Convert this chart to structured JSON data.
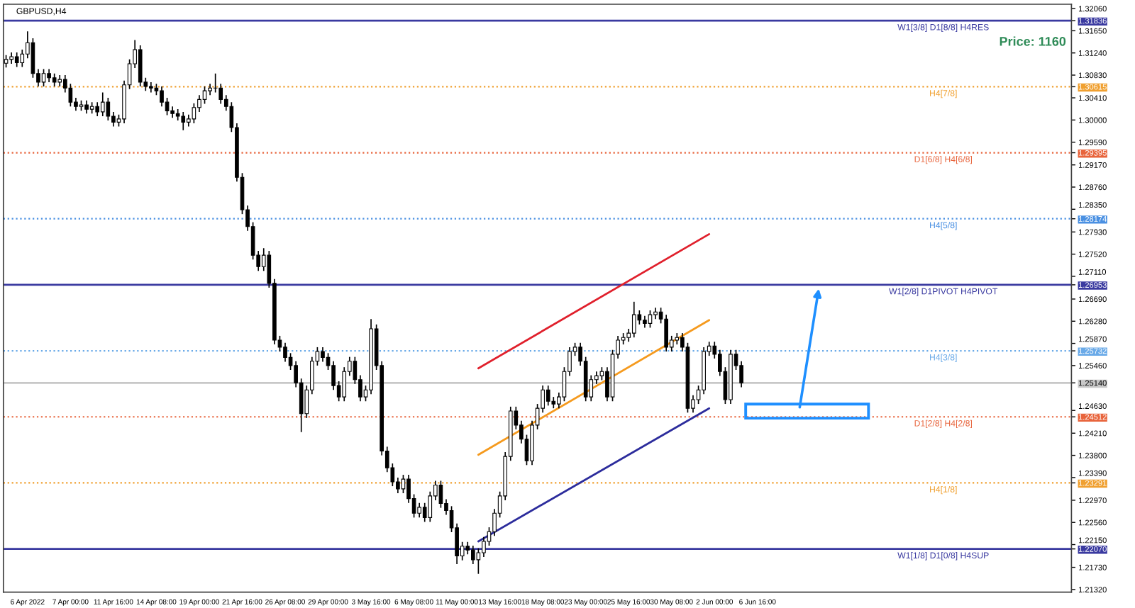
{
  "chart_data": {
    "type": "candlestick",
    "title": "GBPUSD,H4",
    "annotations": [
      "Price: 1160"
    ],
    "categories": [
      null,
      null,
      null,
      null,
      "6 Apr 2022",
      null,
      null,
      null,
      null,
      null,
      null,
      null,
      "7 Apr 00:00",
      null,
      null,
      null,
      null,
      null,
      null,
      null,
      "11 Apr 16:00",
      null,
      null,
      null,
      null,
      null,
      null,
      null,
      "14 Apr 08:00",
      null,
      null,
      null,
      null,
      null,
      null,
      null,
      "19 Apr 00:00",
      null,
      null,
      null,
      null,
      null,
      null,
      null,
      "21 Apr 16:00",
      null,
      null,
      null,
      null,
      null,
      null,
      null,
      "26 Apr 08:00",
      null,
      null,
      null,
      null,
      null,
      null,
      null,
      "29 Apr 00:00",
      null,
      null,
      null,
      null,
      null,
      null,
      null,
      "3 May 16:00",
      null,
      null,
      null,
      null,
      null,
      null,
      null,
      "6 May 08:00",
      null,
      null,
      null,
      null,
      null,
      null,
      null,
      "11 May 00:00",
      null,
      null,
      null,
      null,
      null,
      null,
      null,
      "13 May 16:00",
      null,
      null,
      null,
      null,
      null,
      null,
      null,
      "18 May 08:00",
      null,
      null,
      null,
      null,
      null,
      null,
      null,
      "23 May 00:00",
      null,
      null,
      null,
      null,
      null,
      null,
      null,
      "25 May 16:00",
      null,
      null,
      null,
      null,
      null,
      null,
      null,
      "30 May 08:00",
      null,
      null,
      null,
      null,
      null,
      null,
      null,
      "2 Jun 00:00",
      null,
      null,
      null,
      null,
      null,
      null,
      null,
      "6 Jun 16:00",
      null,
      null,
      null,
      null,
      null,
      null,
      null,
      null,
      null,
      null,
      null,
      null,
      null,
      null,
      null,
      null,
      null,
      null,
      null,
      null,
      null,
      null,
      null,
      null,
      null,
      null,
      null,
      null,
      null,
      null,
      null,
      null,
      null,
      null,
      null,
      null,
      null,
      null,
      null,
      null,
      null,
      null,
      null,
      null,
      null,
      null,
      null,
      null,
      null,
      null,
      null,
      null,
      null,
      null,
      null,
      null,
      null,
      null
    ],
    "ohlc": [
      [
        1.3105,
        1.312,
        1.3097,
        1.3112
      ],
      [
        1.3112,
        1.3125,
        1.3104,
        1.3117
      ],
      [
        1.3117,
        1.3125,
        1.3098,
        1.3106
      ],
      [
        1.3106,
        1.313,
        1.3098,
        1.3122
      ],
      [
        1.3122,
        1.3164,
        1.3114,
        1.3143
      ],
      [
        1.3143,
        1.3151,
        1.3078,
        1.3086
      ],
      [
        1.3086,
        1.3094,
        1.3062,
        1.307
      ],
      [
        1.307,
        1.3094,
        1.3062,
        1.3086
      ],
      [
        1.3086,
        1.3094,
        1.307,
        1.3078
      ],
      [
        1.3078,
        1.3086,
        1.3062,
        1.307
      ],
      [
        1.307,
        1.3083,
        1.3062,
        1.3075
      ],
      [
        1.3075,
        1.3083,
        1.3051,
        1.3059
      ],
      [
        1.3059,
        1.3067,
        1.3025,
        1.3033
      ],
      [
        1.3033,
        1.3041,
        1.3017,
        1.3025
      ],
      [
        1.3025,
        1.3036,
        1.3017,
        1.3028
      ],
      [
        1.3028,
        1.3036,
        1.3012,
        1.302
      ],
      [
        1.302,
        1.3033,
        1.3012,
        1.3025
      ],
      [
        1.3025,
        1.3033,
        1.3007,
        1.3015
      ],
      [
        1.3015,
        1.3051,
        1.3007,
        1.3033
      ],
      [
        1.3033,
        1.3041,
        1.2999,
        1.3007
      ],
      [
        1.3007,
        1.3015,
        1.2988,
        1.2996
      ],
      [
        1.2996,
        1.301,
        1.2988,
        1.3002
      ],
      [
        1.3002,
        1.3073,
        1.2994,
        1.3065
      ],
      [
        1.3065,
        1.3112,
        1.3057,
        1.3104
      ],
      [
        1.3104,
        1.3148,
        1.3096,
        1.313
      ],
      [
        1.313,
        1.3138,
        1.3062,
        1.307
      ],
      [
        1.307,
        1.3078,
        1.3054,
        1.3062
      ],
      [
        1.3062,
        1.307,
        1.3051,
        1.3059
      ],
      [
        1.3059,
        1.3067,
        1.3046,
        1.3054
      ],
      [
        1.3054,
        1.3062,
        1.3025,
        1.3033
      ],
      [
        1.3033,
        1.3041,
        1.3009,
        1.3017
      ],
      [
        1.3017,
        1.3025,
        1.3004,
        1.3012
      ],
      [
        1.3012,
        1.302,
        1.2999,
        1.3007
      ],
      [
        1.3007,
        1.3015,
        1.2981,
        1.2996
      ],
      [
        1.2996,
        1.301,
        1.2988,
        1.3002
      ],
      [
        1.3002,
        1.3031,
        1.2994,
        1.3023
      ],
      [
        1.3023,
        1.3046,
        1.3015,
        1.3038
      ],
      [
        1.3038,
        1.3062,
        1.303,
        1.3054
      ],
      [
        1.3054,
        1.3067,
        1.3046,
        1.3059
      ],
      [
        1.3059,
        1.3086,
        1.3051,
        1.3059
      ],
      [
        1.3059,
        1.3067,
        1.303,
        1.3038
      ],
      [
        1.3038,
        1.3046,
        1.3017,
        1.3025
      ],
      [
        1.3025,
        1.3033,
        1.2978,
        1.2986
      ],
      [
        1.2986,
        1.2994,
        1.2886,
        1.2894
      ],
      [
        1.2894,
        1.2902,
        1.2826,
        1.2834
      ],
      [
        1.2834,
        1.2842,
        1.2795,
        1.2803
      ],
      [
        1.2803,
        1.2811,
        1.2742,
        1.275
      ],
      [
        1.275,
        1.2758,
        1.2721,
        1.2729
      ],
      [
        1.2729,
        1.2763,
        1.2721,
        1.275
      ],
      [
        1.275,
        1.2758,
        1.269,
        1.2698
      ],
      [
        1.2698,
        1.2706,
        1.2585,
        1.2593
      ],
      [
        1.2593,
        1.2601,
        1.2572,
        1.258
      ],
      [
        1.258,
        1.2588,
        1.2553,
        1.2561
      ],
      [
        1.2561,
        1.2569,
        1.2538,
        1.2546
      ],
      [
        1.2546,
        1.2554,
        1.2506,
        1.2514
      ],
      [
        1.2514,
        1.2522,
        1.2423,
        1.2457
      ],
      [
        1.2457,
        1.2509,
        1.2449,
        1.2501
      ],
      [
        1.2501,
        1.2562,
        1.2493,
        1.2554
      ],
      [
        1.2554,
        1.258,
        1.2546,
        1.2572
      ],
      [
        1.2572,
        1.258,
        1.2553,
        1.2561
      ],
      [
        1.2561,
        1.2569,
        1.2538,
        1.2546
      ],
      [
        1.2546,
        1.2554,
        1.2501,
        1.2509
      ],
      [
        1.2509,
        1.2517,
        1.248,
        1.2488
      ],
      [
        1.2488,
        1.2543,
        1.248,
        1.2535
      ],
      [
        1.2535,
        1.2562,
        1.2527,
        1.2554
      ],
      [
        1.2554,
        1.2562,
        1.2512,
        1.252
      ],
      [
        1.252,
        1.2528,
        1.248,
        1.2488
      ],
      [
        1.2488,
        1.2509,
        1.248,
        1.2501
      ],
      [
        1.2501,
        1.2632,
        1.2493,
        1.2614
      ],
      [
        1.2614,
        1.2622,
        1.2538,
        1.2546
      ],
      [
        1.2546,
        1.2554,
        1.238,
        1.2388
      ],
      [
        1.2388,
        1.2396,
        1.2349,
        1.2357
      ],
      [
        1.2357,
        1.2365,
        1.2323,
        1.2331
      ],
      [
        1.2331,
        1.2339,
        1.231,
        1.2318
      ],
      [
        1.2318,
        1.2344,
        1.231,
        1.2336
      ],
      [
        1.2336,
        1.2344,
        1.2292,
        1.23
      ],
      [
        1.23,
        1.2308,
        1.2265,
        1.2273
      ],
      [
        1.2273,
        1.2292,
        1.2265,
        1.2284
      ],
      [
        1.2284,
        1.2292,
        1.2257,
        1.2265
      ],
      [
        1.2265,
        1.2313,
        1.2257,
        1.2305
      ],
      [
        1.2305,
        1.2333,
        1.2297,
        1.2325
      ],
      [
        1.2325,
        1.2333,
        1.2283,
        1.2291
      ],
      [
        1.2291,
        1.2299,
        1.227,
        1.2278
      ],
      [
        1.2278,
        1.2286,
        1.2238,
        1.2246
      ],
      [
        1.2246,
        1.2254,
        1.2179,
        1.2194
      ],
      [
        1.2194,
        1.222,
        1.2186,
        1.2212
      ],
      [
        1.2212,
        1.222,
        1.2197,
        1.2205
      ],
      [
        1.2205,
        1.2213,
        1.2179,
        1.2187
      ],
      [
        1.2187,
        1.2208,
        1.2161,
        1.22
      ],
      [
        1.22,
        1.2229,
        1.2192,
        1.2221
      ],
      [
        1.2221,
        1.2247,
        1.2213,
        1.2239
      ],
      [
        1.2239,
        1.2281,
        1.2231,
        1.2273
      ],
      [
        1.2273,
        1.2313,
        1.2265,
        1.2305
      ],
      [
        1.2305,
        1.2386,
        1.2297,
        1.2378
      ],
      [
        1.2378,
        1.247,
        1.237,
        1.2462
      ],
      [
        1.2462,
        1.247,
        1.2428,
        1.2436
      ],
      [
        1.2436,
        1.2444,
        1.2402,
        1.241
      ],
      [
        1.241,
        1.2418,
        1.2362,
        1.237
      ],
      [
        1.237,
        1.2444,
        1.2362,
        1.2436
      ],
      [
        1.2436,
        1.2475,
        1.2428,
        1.2467
      ],
      [
        1.2467,
        1.2509,
        1.2459,
        1.2501
      ],
      [
        1.2501,
        1.2509,
        1.2472,
        1.248
      ],
      [
        1.248,
        1.2488,
        1.2467,
        1.2475
      ],
      [
        1.2475,
        1.2496,
        1.2467,
        1.2488
      ],
      [
        1.2488,
        1.2543,
        1.248,
        1.2535
      ],
      [
        1.2535,
        1.258,
        1.2527,
        1.2572
      ],
      [
        1.2572,
        1.2588,
        1.2564,
        1.258
      ],
      [
        1.258,
        1.2588,
        1.2546,
        1.2554
      ],
      [
        1.2554,
        1.2562,
        1.248,
        1.2488
      ],
      [
        1.2488,
        1.2528,
        1.248,
        1.252
      ],
      [
        1.252,
        1.2535,
        1.2512,
        1.2527
      ],
      [
        1.2527,
        1.2543,
        1.2519,
        1.2535
      ],
      [
        1.2535,
        1.2543,
        1.248,
        1.2488
      ],
      [
        1.2488,
        1.2575,
        1.248,
        1.2567
      ],
      [
        1.2567,
        1.2601,
        1.2559,
        1.2593
      ],
      [
        1.2593,
        1.2606,
        1.2585,
        1.2598
      ],
      [
        1.2598,
        1.2614,
        1.259,
        1.2606
      ],
      [
        1.2606,
        1.2664,
        1.2598,
        1.264
      ],
      [
        1.264,
        1.2648,
        1.2622,
        1.263
      ],
      [
        1.263,
        1.2638,
        1.2616,
        1.2624
      ],
      [
        1.2624,
        1.2648,
        1.2616,
        1.264
      ],
      [
        1.264,
        1.2653,
        1.2632,
        1.2645
      ],
      [
        1.2645,
        1.2653,
        1.2624,
        1.2632
      ],
      [
        1.2632,
        1.264,
        1.2572,
        1.258
      ],
      [
        1.258,
        1.2601,
        1.2572,
        1.2593
      ],
      [
        1.2593,
        1.2606,
        1.2585,
        1.2598
      ],
      [
        1.2598,
        1.2606,
        1.2572,
        1.258
      ],
      [
        1.258,
        1.2588,
        1.2459,
        1.2467
      ],
      [
        1.2467,
        1.2491,
        1.2459,
        1.2483
      ],
      [
        1.2483,
        1.2509,
        1.2475,
        1.2501
      ],
      [
        1.2501,
        1.258,
        1.2493,
        1.2572
      ],
      [
        1.2572,
        1.259,
        1.2564,
        1.2582
      ],
      [
        1.2582,
        1.259,
        1.2559,
        1.2567
      ],
      [
        1.2567,
        1.2575,
        1.2527,
        1.2535
      ],
      [
        1.2535,
        1.2543,
        1.2475,
        1.2483
      ],
      [
        1.2483,
        1.2575,
        1.2475,
        1.2567
      ],
      [
        1.2567,
        1.2575,
        1.2538,
        1.2546
      ],
      [
        1.2546,
        1.2554,
        1.2506,
        1.2514
      ],
      null,
      null,
      null,
      null,
      null,
      null,
      null,
      null,
      null,
      null,
      null,
      null,
      null,
      null,
      null,
      null,
      null,
      null,
      null,
      null,
      null,
      null,
      null,
      null,
      null,
      null,
      null,
      null,
      null,
      null,
      null,
      null,
      null,
      null,
      null,
      null,
      null,
      null,
      null,
      null,
      null,
      null,
      null,
      null,
      null,
      null,
      null,
      null,
      null,
      null,
      null,
      null,
      null,
      null,
      null,
      null,
      null,
      null,
      null,
      null,
      null
    ],
    "series": [
      {
        "type": "line",
        "color": "#e0202c",
        "values": [
          null,
          null,
          null,
          null,
          null,
          null,
          null,
          null,
          null,
          null,
          null,
          null,
          null,
          null,
          null,
          null,
          null,
          null,
          null,
          null,
          null,
          null,
          null,
          null,
          null,
          null,
          null,
          null,
          null,
          null,
          null,
          null,
          null,
          null,
          null,
          null,
          null,
          null,
          null,
          null,
          null,
          null,
          null,
          null,
          null,
          null,
          null,
          null,
          null,
          null,
          null,
          null,
          null,
          null,
          null,
          null,
          null,
          null,
          null,
          null,
          null,
          null,
          null,
          null,
          null,
          null,
          null,
          null,
          null,
          null,
          null,
          null,
          null,
          null,
          null,
          null,
          null,
          null,
          null,
          null,
          null,
          null,
          null,
          null,
          null,
          null,
          null,
          null,
          1.2541,
          null,
          null,
          null,
          null,
          null,
          null,
          null,
          null,
          null,
          null,
          null,
          null,
          null,
          null,
          null,
          null,
          null,
          null,
          null,
          null,
          null,
          null,
          null,
          null,
          null,
          null,
          null,
          null,
          null,
          null,
          null,
          null,
          null,
          null,
          null,
          null,
          null,
          null,
          null,
          null,
          null,
          null,
          1.2789,
          null,
          null,
          null,
          null,
          null,
          null,
          null,
          null,
          null,
          null,
          null,
          null,
          null,
          null,
          null,
          null,
          null,
          null,
          null,
          null,
          null,
          null,
          null,
          null,
          null,
          null,
          null,
          null,
          null,
          null,
          null,
          null,
          null,
          null,
          null,
          null,
          null,
          null,
          null,
          null,
          null,
          null,
          null,
          null,
          null,
          null,
          null,
          null,
          null,
          null,
          null,
          null,
          null,
          null,
          null,
          null,
          null,
          null,
          null,
          null,
          null,
          null,
          null,
          null,
          null,
          null,
          null
        ]
      },
      {
        "type": "line",
        "color": "#f59a1e",
        "values": [
          null,
          null,
          null,
          null,
          null,
          null,
          null,
          null,
          null,
          null,
          null,
          null,
          null,
          null,
          null,
          null,
          null,
          null,
          null,
          null,
          null,
          null,
          null,
          null,
          null,
          null,
          null,
          null,
          null,
          null,
          null,
          null,
          null,
          null,
          null,
          null,
          null,
          null,
          null,
          null,
          null,
          null,
          null,
          null,
          null,
          null,
          null,
          null,
          null,
          null,
          null,
          null,
          null,
          null,
          null,
          null,
          null,
          null,
          null,
          null,
          null,
          null,
          null,
          null,
          null,
          null,
          null,
          null,
          null,
          null,
          null,
          null,
          null,
          null,
          null,
          null,
          null,
          null,
          null,
          null,
          null,
          null,
          null,
          null,
          null,
          null,
          null,
          null,
          1.2381,
          null,
          null,
          null,
          null,
          null,
          null,
          null,
          null,
          null,
          null,
          null,
          null,
          null,
          null,
          null,
          null,
          null,
          null,
          null,
          null,
          null,
          null,
          null,
          null,
          null,
          null,
          null,
          null,
          null,
          null,
          null,
          null,
          null,
          null,
          null,
          null,
          null,
          null,
          null,
          null,
          null,
          null,
          1.263,
          null,
          null,
          null,
          null,
          null,
          null,
          null,
          null,
          null,
          null,
          null,
          null,
          null,
          null,
          null,
          null,
          null,
          null,
          null,
          null,
          null,
          null,
          null,
          null,
          null,
          null,
          null,
          null,
          null,
          null,
          null,
          null,
          null,
          null,
          null,
          null,
          null,
          null,
          null,
          null,
          null,
          null,
          null,
          null,
          null,
          null,
          null,
          null,
          null,
          null,
          null,
          null,
          null,
          null,
          null,
          null,
          null,
          null,
          null,
          null,
          null,
          null,
          null,
          null,
          null,
          null,
          null
        ]
      },
      {
        "type": "line",
        "color": "#2c2c9c",
        "values": [
          null,
          null,
          null,
          null,
          null,
          null,
          null,
          null,
          null,
          null,
          null,
          null,
          null,
          null,
          null,
          null,
          null,
          null,
          null,
          null,
          null,
          null,
          null,
          null,
          null,
          null,
          null,
          null,
          null,
          null,
          null,
          null,
          null,
          null,
          null,
          null,
          null,
          null,
          null,
          null,
          null,
          null,
          null,
          null,
          null,
          null,
          null,
          null,
          null,
          null,
          null,
          null,
          null,
          null,
          null,
          null,
          null,
          null,
          null,
          null,
          null,
          null,
          null,
          null,
          null,
          null,
          null,
          null,
          null,
          null,
          null,
          null,
          null,
          null,
          null,
          null,
          null,
          null,
          null,
          null,
          null,
          null,
          null,
          null,
          null,
          null,
          null,
          null,
          1.2221,
          null,
          null,
          null,
          null,
          null,
          null,
          null,
          null,
          null,
          null,
          null,
          null,
          null,
          null,
          null,
          null,
          null,
          null,
          null,
          null,
          null,
          null,
          null,
          null,
          null,
          null,
          null,
          null,
          null,
          null,
          null,
          null,
          null,
          null,
          null,
          null,
          null,
          null,
          null,
          null,
          null,
          null,
          1.2467,
          null,
          null,
          null,
          null,
          null,
          null,
          null,
          null,
          null,
          null,
          null,
          null,
          null,
          null,
          null,
          null,
          null,
          null,
          null,
          null,
          null,
          null,
          null,
          null,
          null,
          null,
          null,
          null,
          null,
          null,
          null,
          null,
          null,
          null,
          null,
          null,
          null,
          null,
          null,
          null,
          null,
          null,
          null,
          null,
          null,
          null,
          null,
          null,
          null,
          null,
          null,
          null,
          null,
          null,
          null,
          null,
          null,
          null,
          null,
          null,
          null,
          null,
          null,
          null,
          null,
          null,
          null
        ]
      }
    ],
    "ref_lines": [
      {
        "axis": "y",
        "value": 1.31836,
        "label": "W1[3/8] D1[8/8] H4RES",
        "color": "#3a3aa0",
        "line_style": "solid"
      },
      {
        "axis": "y",
        "value": 1.30615,
        "label": "H4[7/8]",
        "color": "#f0a030",
        "line_style": "dotted"
      },
      {
        "axis": "y",
        "value": 1.29395,
        "label": "D1[6/8] H4[6/8]",
        "color": "#e8643c",
        "line_style": "dotted"
      },
      {
        "axis": "y",
        "value": 1.28174,
        "label": "H4[5/8]",
        "color": "#4a90e2",
        "line_style": "dotted"
      },
      {
        "axis": "y",
        "value": 1.26953,
        "label": "W1[2/8] D1PIVOT H4PIVOT",
        "color": "#3a3aa0",
        "line_style": "solid"
      },
      {
        "axis": "y",
        "value": 1.25732,
        "label": "H4[3/8]",
        "color": "#6aaae8",
        "line_style": "dotted"
      },
      {
        "axis": "y",
        "value": 1.2514,
        "color": "#c8c8c8",
        "line_style": "solid"
      },
      {
        "axis": "y",
        "value": 1.24512,
        "label": "D1[2/8] H4[2/8]",
        "color": "#e8643c",
        "line_style": "dotted"
      },
      {
        "axis": "y",
        "value": 1.23291,
        "label": "H4[1/8]",
        "color": "#f0a030",
        "line_style": "dotted"
      },
      {
        "axis": "y",
        "value": 1.2207,
        "label": "W1[1/8] D1[0/8] H4SUP",
        "color": "#3a3aa0",
        "line_style": "solid"
      }
    ],
    "ylim": [
      1.2127,
      1.3214
    ],
    "yticks": [
      {
        "value": 1.3206,
        "label": "1.32060"
      },
      {
        "value": 1.3165,
        "label": "1.31650"
      },
      {
        "value": 1.3124,
        "label": "1.31240"
      },
      {
        "value": 1.3083,
        "label": "1.30830"
      },
      {
        "value": 1.3041,
        "label": "1.30410"
      },
      {
        "value": 1.3,
        "label": "1.30000"
      },
      {
        "value": 1.2959,
        "label": "1.29590"
      },
      {
        "value": 1.2917,
        "label": "1.29170"
      },
      {
        "value": 1.2876,
        "label": "1.28760"
      },
      {
        "value": 1.2835,
        "label": "1.28350"
      },
      {
        "value": 1.2793,
        "label": "1.27930"
      },
      {
        "value": 1.2752,
        "label": "1.27520"
      },
      {
        "value": 1.2711,
        "label": "1.27110"
      },
      {
        "value": 1.2669,
        "label": "1.26690"
      },
      {
        "value": 1.2628,
        "label": "1.26280"
      },
      {
        "value": 1.2587,
        "label": "1.25870"
      },
      {
        "value": 1.2546,
        "label": "1.25460"
      },
      {
        "value": 1.2463,
        "label": "1.24630"
      },
      {
        "value": 1.2421,
        "label": "1.24210"
      },
      {
        "value": 1.238,
        "label": "1.23800"
      },
      {
        "value": 1.2339,
        "label": "1.23390"
      },
      {
        "value": 1.2297,
        "label": "1.22970"
      },
      {
        "value": 1.2256,
        "label": "1.22560"
      },
      {
        "value": 1.2215,
        "label": "1.22150"
      },
      {
        "value": 1.2173,
        "label": "1.21730"
      },
      {
        "value": 1.2132,
        "label": "1.21320"
      },
      {
        "value": 1.31836,
        "label": "1.31836"
      },
      {
        "value": 1.30615,
        "label": "1.30615"
      },
      {
        "value": 1.29395,
        "label": "1.29395"
      },
      {
        "value": 1.28174,
        "label": "1.28174"
      },
      {
        "value": 1.26953,
        "label": "1.26953"
      },
      {
        "value": 1.25732,
        "label": "1.25732"
      },
      {
        "value": 1.2514,
        "label": "1.25140"
      },
      {
        "value": 1.24512,
        "label": "1.24512"
      },
      {
        "value": 1.23291,
        "label": "1.23291"
      },
      {
        "value": 1.2207,
        "label": "1.22070"
      }
    ],
    "grid": false,
    "legend": false
  }
}
